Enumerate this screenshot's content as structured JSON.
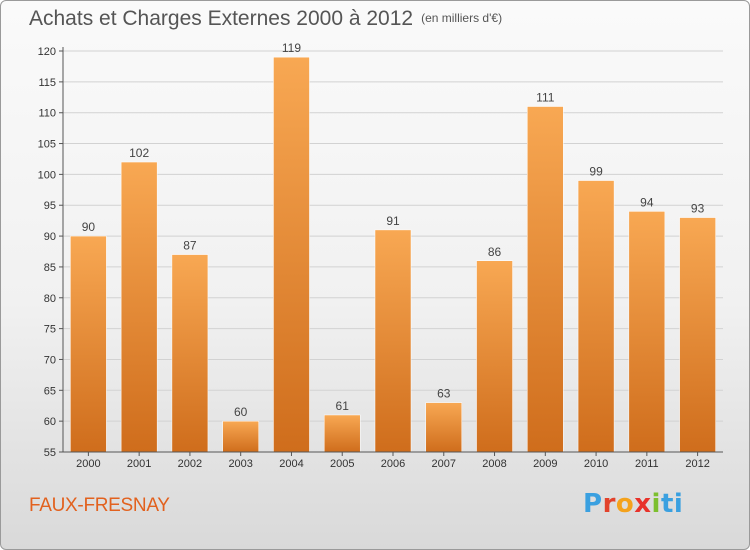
{
  "header": {
    "title": "Achats et Charges Externes 2000 à 2012",
    "unit": "(en milliers d'€)"
  },
  "footer": {
    "commune": "FAUX-FRESNAY",
    "logo_text": "Proxiti"
  },
  "colors": {
    "bar_light": "#f8a853",
    "bar_dark": "#cf6d1c",
    "commune": "#e2611e"
  },
  "chart_data": {
    "type": "bar",
    "title": "Achats et Charges Externes 2000 à 2012",
    "subtitle": "(en milliers d'€)",
    "categories": [
      "2000",
      "2001",
      "2002",
      "2003",
      "2004",
      "2005",
      "2006",
      "2007",
      "2008",
      "2009",
      "2010",
      "2011",
      "2012"
    ],
    "values": [
      90,
      102,
      87,
      60,
      119,
      61,
      91,
      63,
      86,
      111,
      99,
      94,
      93
    ],
    "ylim": [
      55,
      120
    ],
    "yticks": [
      55,
      60,
      65,
      70,
      75,
      80,
      85,
      90,
      95,
      100,
      105,
      110,
      115,
      120
    ],
    "grid": true,
    "legend": "none"
  }
}
